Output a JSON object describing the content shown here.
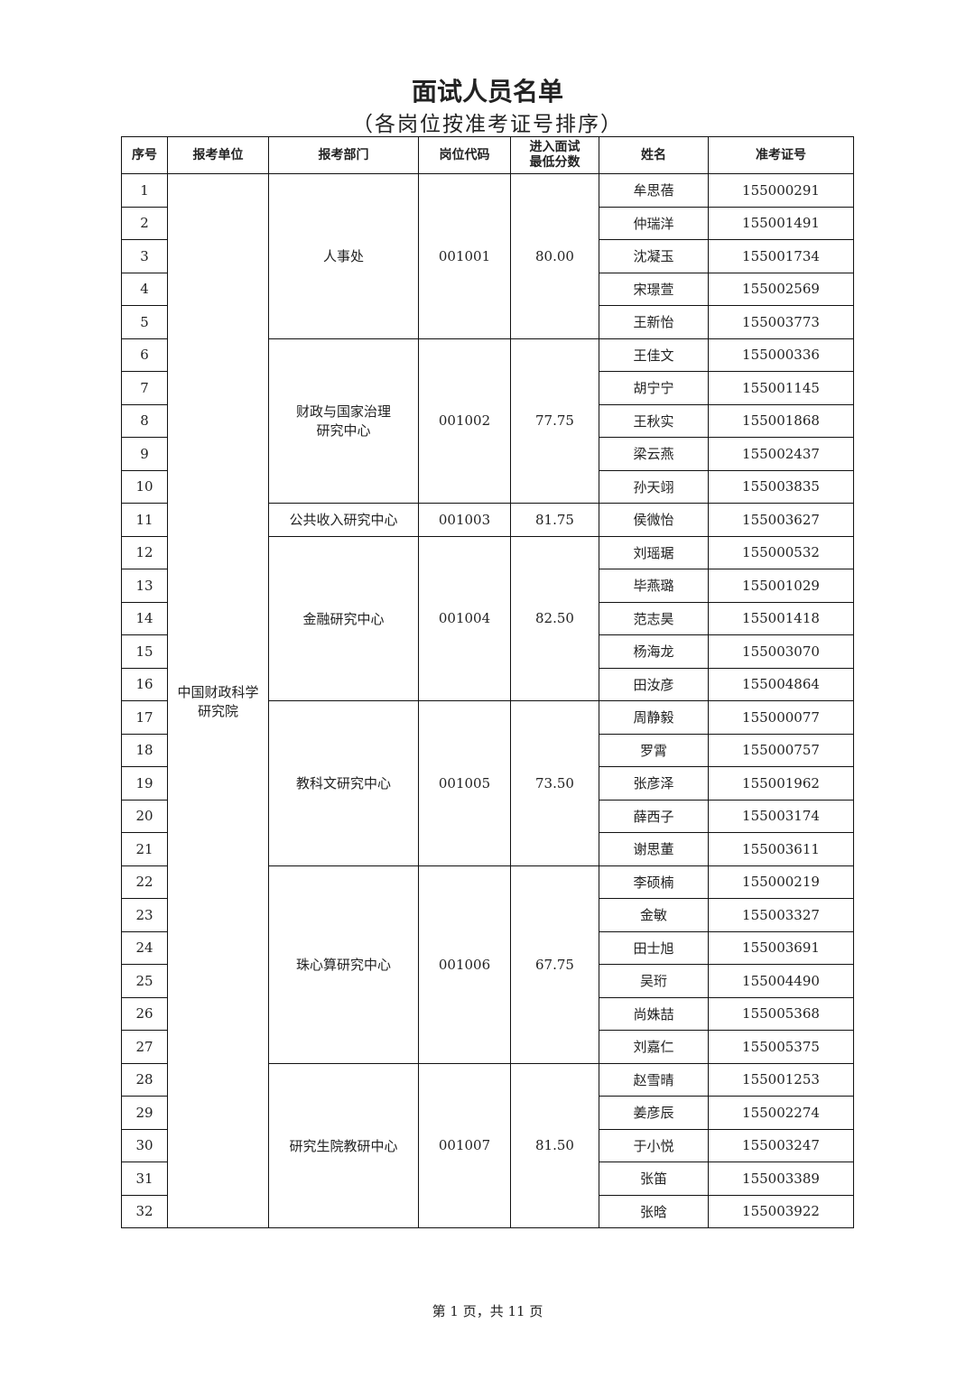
{
  "title": "面试人员名单",
  "subtitle": "（各岗位按准考证号排序）",
  "headers": [
    "序号",
    "报考单位",
    "报考部门",
    "岗位代码",
    "进入面试\n最低分数",
    "姓名",
    "准考证号"
  ],
  "unit": "中国财政科学\n研究院",
  "groups": [
    {
      "dept": "人事处",
      "code": "001001",
      "score": "80.00",
      "people": [
        [
          "1",
          "牟思蓓",
          "155000291"
        ],
        [
          "2",
          "仲瑞洋",
          "155001491"
        ],
        [
          "3",
          "沈凝玉",
          "155001734"
        ],
        [
          "4",
          "宋璟萱",
          "155002569"
        ],
        [
          "5",
          "王新怡",
          "155003773"
        ]
      ]
    },
    {
      "dept": "财政与国家治理\n研究中心",
      "code": "001002",
      "score": "77.75",
      "people": [
        [
          "6",
          "王佳文",
          "155000336"
        ],
        [
          "7",
          "胡宁宁",
          "155001145"
        ],
        [
          "8",
          "王秋实",
          "155001868"
        ],
        [
          "9",
          "梁云燕",
          "155002437"
        ],
        [
          "10",
          "孙天翊",
          "155003835"
        ]
      ]
    },
    {
      "dept": "公共收入研究中心",
      "code": "001003",
      "score": "81.75",
      "people": [
        [
          "11",
          "侯微怡",
          "155003627"
        ]
      ]
    },
    {
      "dept": "金融研究中心",
      "code": "001004",
      "score": "82.50",
      "people": [
        [
          "12",
          "刘瑶琚",
          "155000532"
        ],
        [
          "13",
          "毕燕璐",
          "155001029"
        ],
        [
          "14",
          "范志昊",
          "155001418"
        ],
        [
          "15",
          "杨海龙",
          "155003070"
        ],
        [
          "16",
          "田汝彦",
          "155004864"
        ]
      ]
    },
    {
      "dept": "教科文研究中心",
      "code": "001005",
      "score": "73.50",
      "people": [
        [
          "17",
          "周静毅",
          "155000077"
        ],
        [
          "18",
          "罗霄",
          "155000757"
        ],
        [
          "19",
          "张彦泽",
          "155001962"
        ],
        [
          "20",
          "薛西子",
          "155003174"
        ],
        [
          "21",
          "谢思董",
          "155003611"
        ]
      ]
    },
    {
      "dept": "珠心算研究中心",
      "code": "001006",
      "score": "67.75",
      "people": [
        [
          "22",
          "李硕楠",
          "155000219"
        ],
        [
          "23",
          "金敏",
          "155003327"
        ],
        [
          "24",
          "田士旭",
          "155003691"
        ],
        [
          "25",
          "吴珩",
          "155004490"
        ],
        [
          "26",
          "尚姝喆",
          "155005368"
        ],
        [
          "27",
          "刘嘉仁",
          "155005375"
        ]
      ]
    },
    {
      "dept": "研究生院教研中心",
      "code": "001007",
      "score": "81.50",
      "people": [
        [
          "28",
          "赵雪晴",
          "155001253"
        ],
        [
          "29",
          "姜彦辰",
          "155002274"
        ],
        [
          "30",
          "于小悦",
          "155003247"
        ],
        [
          "31",
          "张笛",
          "155003389"
        ],
        [
          "32",
          "张晗",
          "155003922"
        ]
      ]
    }
  ],
  "footer": "第 1 页，共 11 页"
}
